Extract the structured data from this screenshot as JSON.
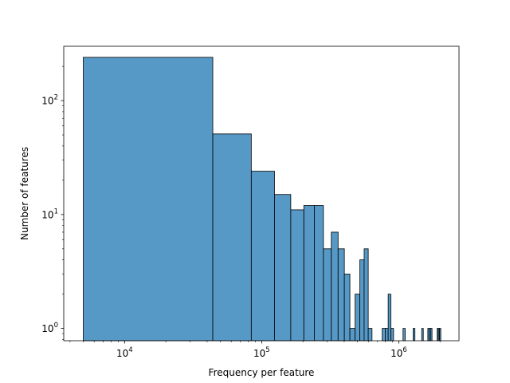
{
  "chart_data": {
    "type": "bar",
    "subtype": "histogram",
    "xscale": "log",
    "yscale": "log",
    "xlabel": "Frequency per feature",
    "ylabel": "Number of features",
    "xlim": [
      3600,
      2750000
    ],
    "ylim": [
      0.78,
      300
    ],
    "grid": false,
    "legend": "none",
    "bar_color": "#5799c6",
    "edge_color": "#000000",
    "x_major_ticks": [
      {
        "value": 10000,
        "base": "10",
        "exp": "4"
      },
      {
        "value": 100000,
        "base": "10",
        "exp": "5"
      },
      {
        "value": 1000000,
        "base": "10",
        "exp": "6"
      }
    ],
    "y_major_ticks": [
      {
        "value": 1,
        "base": "10",
        "exp": "0"
      },
      {
        "value": 10,
        "base": "10",
        "exp": "1"
      },
      {
        "value": 100,
        "base": "10",
        "exp": "2"
      }
    ],
    "bins": [
      {
        "x0": 5000,
        "x1": 44000,
        "count": 240
      },
      {
        "x0": 44000,
        "x1": 84000,
        "count": 51
      },
      {
        "x0": 84000,
        "x1": 124000,
        "count": 24
      },
      {
        "x0": 124000,
        "x1": 163000,
        "count": 15
      },
      {
        "x0": 163000,
        "x1": 203000,
        "count": 11
      },
      {
        "x0": 203000,
        "x1": 242000,
        "count": 12
      },
      {
        "x0": 242000,
        "x1": 282000,
        "count": 12
      },
      {
        "x0": 282000,
        "x1": 322000,
        "count": 5
      },
      {
        "x0": 322000,
        "x1": 361000,
        "count": 7
      },
      {
        "x0": 361000,
        "x1": 401000,
        "count": 5
      },
      {
        "x0": 401000,
        "x1": 440000,
        "count": 3
      },
      {
        "x0": 440000,
        "x1": 480000,
        "count": 1
      },
      {
        "x0": 480000,
        "x1": 520000,
        "count": 2
      },
      {
        "x0": 520000,
        "x1": 559000,
        "count": 4
      },
      {
        "x0": 559000,
        "x1": 599000,
        "count": 5
      },
      {
        "x0": 599000,
        "x1": 638000,
        "count": 1
      },
      {
        "x0": 757000,
        "x1": 797000,
        "count": 1
      },
      {
        "x0": 797000,
        "x1": 837000,
        "count": 1
      },
      {
        "x0": 837000,
        "x1": 876000,
        "count": 2
      },
      {
        "x0": 876000,
        "x1": 916000,
        "count": 1
      },
      {
        "x0": 1074000,
        "x1": 1114000,
        "count": 1
      },
      {
        "x0": 1272000,
        "x1": 1312000,
        "count": 1
      },
      {
        "x0": 1470000,
        "x1": 1510000,
        "count": 1
      },
      {
        "x0": 1629000,
        "x1": 1668000,
        "count": 1
      },
      {
        "x0": 1668000,
        "x1": 1708000,
        "count": 1
      },
      {
        "x0": 1708000,
        "x1": 1748000,
        "count": 1
      },
      {
        "x0": 1906000,
        "x1": 1946000,
        "count": 1
      },
      {
        "x0": 1946000,
        "x1": 1985000,
        "count": 1
      },
      {
        "x0": 1985000,
        "x1": 2025000,
        "count": 1
      }
    ]
  }
}
